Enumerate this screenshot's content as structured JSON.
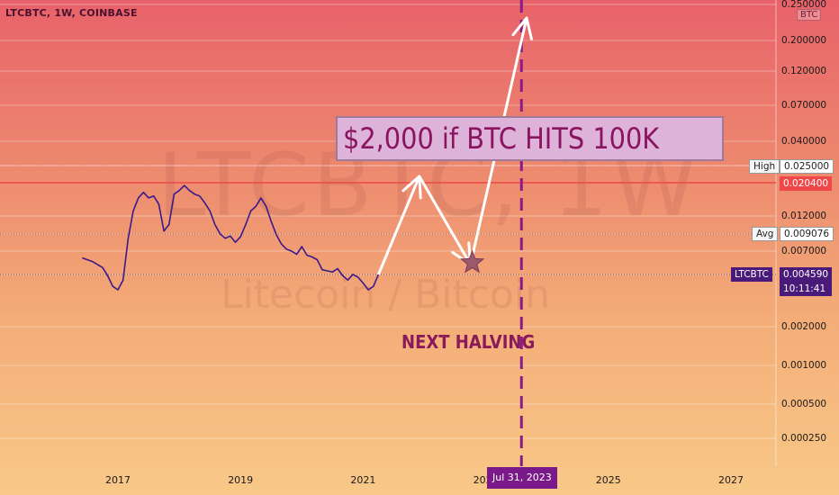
{
  "header": {
    "symbol_title": "LTCBTC, 1W, COINBASE",
    "currency_badge": "BTC"
  },
  "watermark": {
    "symbol": "LTCBTC, 1W",
    "description": "Litecoin / Bitcoin"
  },
  "annotations": {
    "callout_text": "$2,000 if BTC HITS 100K",
    "halving_text": "NEXT HALVING",
    "halving_date": "Jul 31, 2023"
  },
  "price_tags": {
    "high_label": "High",
    "high_value": "0.025000",
    "current_line_value": "0.020400",
    "avg_label": "Avg",
    "avg_value": "0.009076",
    "symbol_label": "LTCBTC",
    "last_price": "0.004590",
    "countdown": "10:11:41"
  },
  "colors": {
    "line": "#3a1a8a",
    "arrow": "#ffffff",
    "halving_line": "#8a1a8a",
    "red_line": "#f04848",
    "callout_bg": "#ddb3d9",
    "callout_text": "#8a1460"
  },
  "chart_data": {
    "type": "line",
    "title": "LTCBTC, 1W, COINBASE",
    "scale": "log",
    "ylim": [
      0.0002,
      0.25
    ],
    "y_ticks": [
      "0.250000",
      "0.200000",
      "0.120000",
      "0.070000",
      "0.040000",
      "0.025000",
      "0.020400",
      "0.012000",
      "0.009076",
      "0.007000",
      "0.004590",
      "0.002000",
      "0.001000",
      "0.000500",
      "0.000250"
    ],
    "x_ticks": [
      "2017",
      "2019",
      "2021",
      "2023",
      "2025",
      "2027"
    ],
    "series": [
      {
        "values": [
          {
            "x": "2016-06",
            "y": 0.0062
          },
          {
            "x": "2016-08",
            "y": 0.0058
          },
          {
            "x": "2016-10",
            "y": 0.0052
          },
          {
            "x": "2016-11",
            "y": 0.0045
          },
          {
            "x": "2016-12",
            "y": 0.0038
          },
          {
            "x": "2017-01",
            "y": 0.0036
          },
          {
            "x": "2017-02",
            "y": 0.0042
          },
          {
            "x": "2017-03",
            "y": 0.0085
          },
          {
            "x": "2017-04",
            "y": 0.013
          },
          {
            "x": "2017-05",
            "y": 0.016
          },
          {
            "x": "2017-06",
            "y": 0.0175
          },
          {
            "x": "2017-07",
            "y": 0.016
          },
          {
            "x": "2017-08",
            "y": 0.0165
          },
          {
            "x": "2017-09",
            "y": 0.0145
          },
          {
            "x": "2017-10",
            "y": 0.0095
          },
          {
            "x": "2017-11",
            "y": 0.0105
          },
          {
            "x": "2017-12",
            "y": 0.017
          },
          {
            "x": "2018-01",
            "y": 0.018
          },
          {
            "x": "2018-02",
            "y": 0.0195
          },
          {
            "x": "2018-03",
            "y": 0.018
          },
          {
            "x": "2018-04",
            "y": 0.017
          },
          {
            "x": "2018-05",
            "y": 0.0165
          },
          {
            "x": "2018-06",
            "y": 0.0148
          },
          {
            "x": "2018-07",
            "y": 0.013
          },
          {
            "x": "2018-08",
            "y": 0.0105
          },
          {
            "x": "2018-09",
            "y": 0.0091
          },
          {
            "x": "2018-10",
            "y": 0.0085
          },
          {
            "x": "2018-11",
            "y": 0.0088
          },
          {
            "x": "2018-12",
            "y": 0.008
          },
          {
            "x": "2019-01",
            "y": 0.0087
          },
          {
            "x": "2019-02",
            "y": 0.0105
          },
          {
            "x": "2019-03",
            "y": 0.013
          },
          {
            "x": "2019-04",
            "y": 0.014
          },
          {
            "x": "2019-05",
            "y": 0.016
          },
          {
            "x": "2019-06",
            "y": 0.014
          },
          {
            "x": "2019-07",
            "y": 0.011
          },
          {
            "x": "2019-08",
            "y": 0.009
          },
          {
            "x": "2019-09",
            "y": 0.0078
          },
          {
            "x": "2019-10",
            "y": 0.0072
          },
          {
            "x": "2019-11",
            "y": 0.007
          },
          {
            "x": "2019-12",
            "y": 0.0066
          },
          {
            "x": "2020-01",
            "y": 0.0075
          },
          {
            "x": "2020-02",
            "y": 0.0065
          },
          {
            "x": "2020-03",
            "y": 0.0063
          },
          {
            "x": "2020-04",
            "y": 0.006
          },
          {
            "x": "2020-05",
            "y": 0.005
          },
          {
            "x": "2020-06",
            "y": 0.0049
          },
          {
            "x": "2020-07",
            "y": 0.0048
          },
          {
            "x": "2020-08",
            "y": 0.0051
          },
          {
            "x": "2020-09",
            "y": 0.0045
          },
          {
            "x": "2020-10",
            "y": 0.0042
          },
          {
            "x": "2020-11",
            "y": 0.0046
          },
          {
            "x": "2020-12",
            "y": 0.0044
          },
          {
            "x": "2021-01",
            "y": 0.004
          },
          {
            "x": "2021-02",
            "y": 0.0036
          },
          {
            "x": "2021-03",
            "y": 0.0038
          },
          {
            "x": "2021-04",
            "y": 0.00459
          }
        ]
      }
    ],
    "projection_path": [
      {
        "x": "2021-04",
        "y": 0.00459
      },
      {
        "x": "2021-12",
        "y": 0.022
      },
      {
        "x": "2022-10",
        "y": 0.0055
      },
      {
        "x": "2023-09",
        "y": 0.23
      }
    ],
    "markers": [
      {
        "label": "High",
        "y": 0.025
      },
      {
        "y": 0.0204
      },
      {
        "label": "Avg",
        "y": 0.009076
      },
      {
        "label": "NEXT HALVING",
        "x": "2023-07-31"
      }
    ],
    "annotation": "$2,000 if BTC HITS 100K",
    "grid": true,
    "legend": "none"
  }
}
